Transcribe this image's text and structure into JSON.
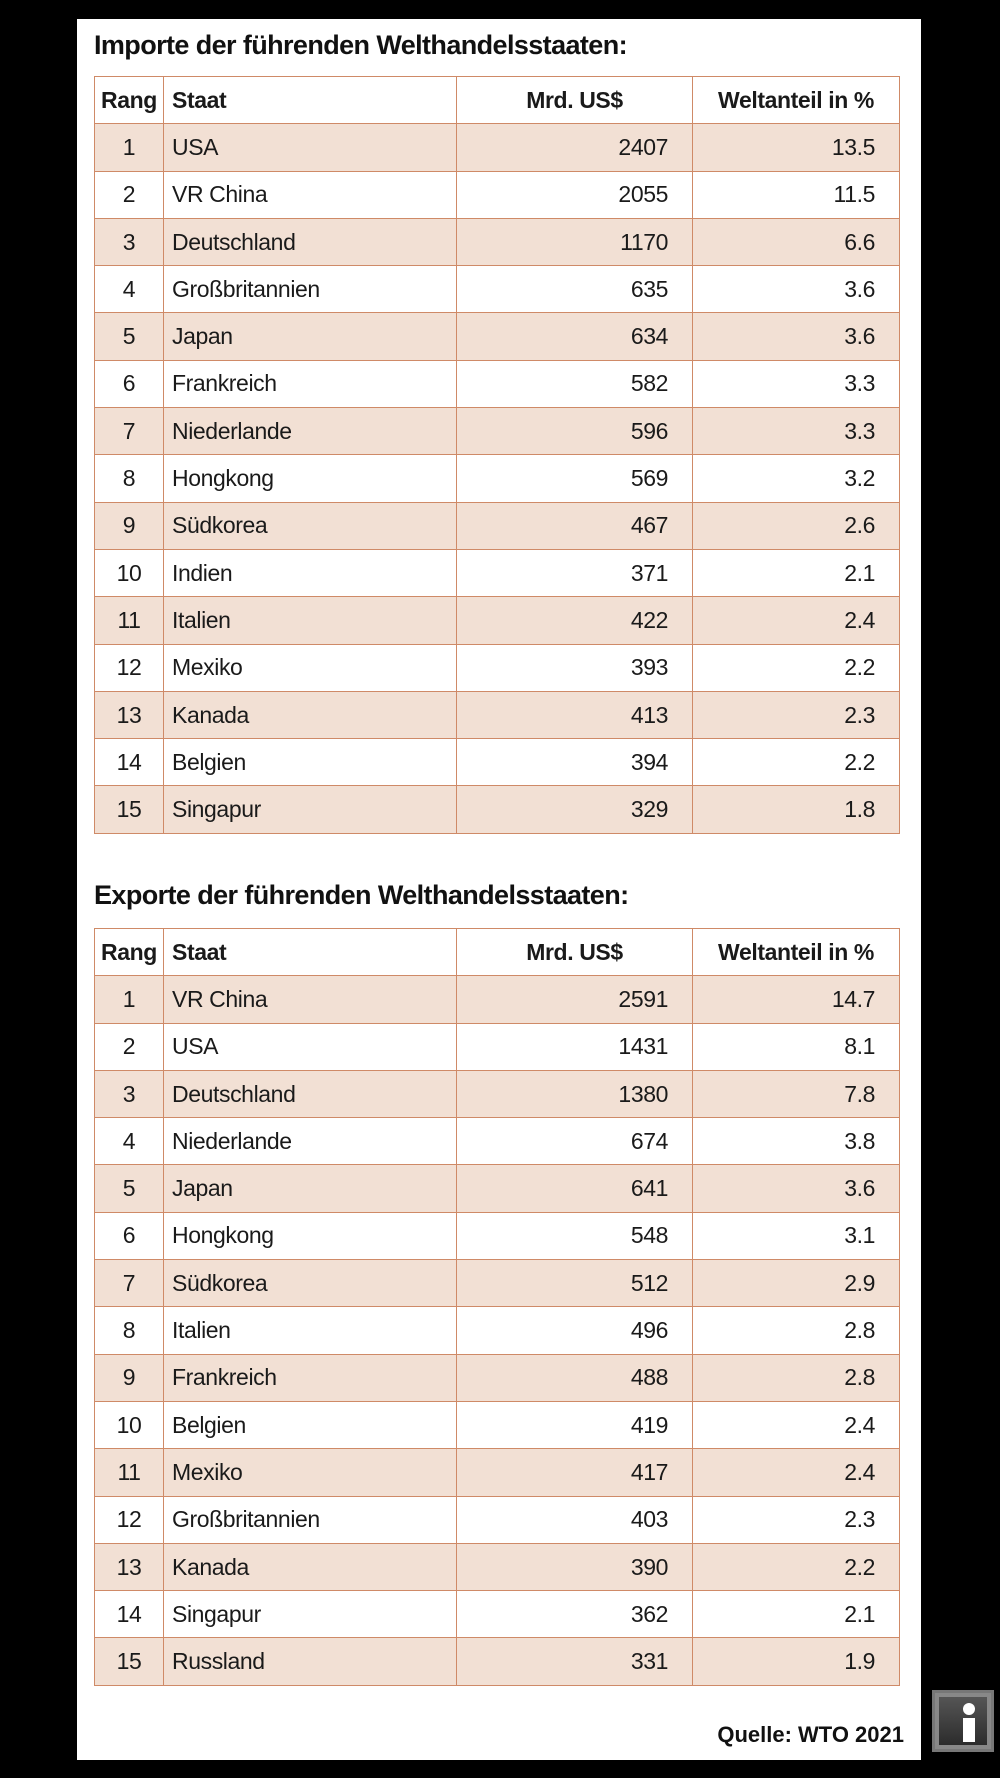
{
  "colors": {
    "border": "#cf8a67",
    "alt_row": "#f2e0d4"
  },
  "headers": {
    "rang": "Rang",
    "staat": "Staat",
    "mrd": "Mrd. US$",
    "anteil": "Weltanteil in %"
  },
  "imports": {
    "title": "Importe der führenden Welthandelsstaaten:",
    "rows": [
      [
        "1",
        "USA",
        "2407",
        "13.5"
      ],
      [
        "2",
        "VR China",
        "2055",
        "11.5"
      ],
      [
        "3",
        "Deutschland",
        "1170",
        "6.6"
      ],
      [
        "4",
        "Großbritannien",
        "635",
        "3.6"
      ],
      [
        "5",
        "Japan",
        "634",
        "3.6"
      ],
      [
        "6",
        "Frankreich",
        "582",
        "3.3"
      ],
      [
        "7",
        "Niederlande",
        "596",
        "3.3"
      ],
      [
        "8",
        "Hongkong",
        "569",
        "3.2"
      ],
      [
        "9",
        "Südkorea",
        "467",
        "2.6"
      ],
      [
        "10",
        "Indien",
        "371",
        "2.1"
      ],
      [
        "11",
        "Italien",
        "422",
        "2.4"
      ],
      [
        "12",
        "Mexiko",
        "393",
        "2.2"
      ],
      [
        "13",
        "Kanada",
        "413",
        "2.3"
      ],
      [
        "14",
        "Belgien",
        "394",
        "2.2"
      ],
      [
        "15",
        "Singapur",
        "329",
        "1.8"
      ]
    ]
  },
  "exports": {
    "title": "Exporte der führenden Welthandelsstaaten:",
    "rows": [
      [
        "1",
        "VR China",
        "2591",
        "14.7"
      ],
      [
        "2",
        "USA",
        "1431",
        "8.1"
      ],
      [
        "3",
        "Deutschland",
        "1380",
        "7.8"
      ],
      [
        "4",
        "Niederlande",
        "674",
        "3.8"
      ],
      [
        "5",
        "Japan",
        "641",
        "3.6"
      ],
      [
        "6",
        "Hongkong",
        "548",
        "3.1"
      ],
      [
        "7",
        "Südkorea",
        "512",
        "2.9"
      ],
      [
        "8",
        "Italien",
        "496",
        "2.8"
      ],
      [
        "9",
        "Frankreich",
        "488",
        "2.8"
      ],
      [
        "10",
        "Belgien",
        "419",
        "2.4"
      ],
      [
        "11",
        "Mexiko",
        "417",
        "2.4"
      ],
      [
        "12",
        "Großbritannien",
        "403",
        "2.3"
      ],
      [
        "13",
        "Kanada",
        "390",
        "2.2"
      ],
      [
        "14",
        "Singapur",
        "362",
        "2.1"
      ],
      [
        "15",
        "Russland",
        "331",
        "1.9"
      ]
    ]
  },
  "source": "Quelle: WTO 2021",
  "info_icon": "info-icon"
}
